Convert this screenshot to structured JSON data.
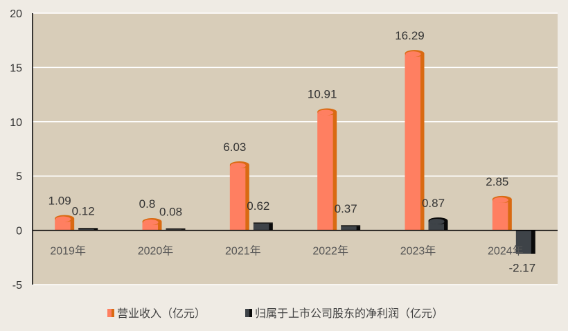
{
  "chart_data": {
    "type": "bar",
    "categories": [
      "2019年",
      "2020年",
      "2021年",
      "2022年",
      "2023年",
      "2024年"
    ],
    "series": [
      {
        "name": "营业收入（亿元）",
        "values": [
          1.09,
          0.8,
          6.03,
          10.91,
          16.29,
          2.85
        ],
        "labels": [
          "1.09",
          "0.8",
          "6.03",
          "10.91",
          "16.29",
          "2.85"
        ],
        "color": "#ff7f61",
        "side_color": "#d96a12"
      },
      {
        "name": "归属于上市公司股东的净利润（亿元）",
        "values": [
          0.12,
          0.08,
          0.62,
          0.37,
          0.87,
          -2.17
        ],
        "labels": [
          "0.12",
          "0.08",
          "0.62",
          "0.37",
          "0.87",
          "-2.17"
        ],
        "color": "#3e4348",
        "side_color": "#0a0a0a"
      }
    ],
    "ylim": [
      -5,
      20
    ],
    "yticks": [
      "-5",
      "0",
      "5",
      "10",
      "15",
      "20"
    ],
    "grid": true,
    "legend": "bottom",
    "plot_background": "#d8cdb9"
  }
}
